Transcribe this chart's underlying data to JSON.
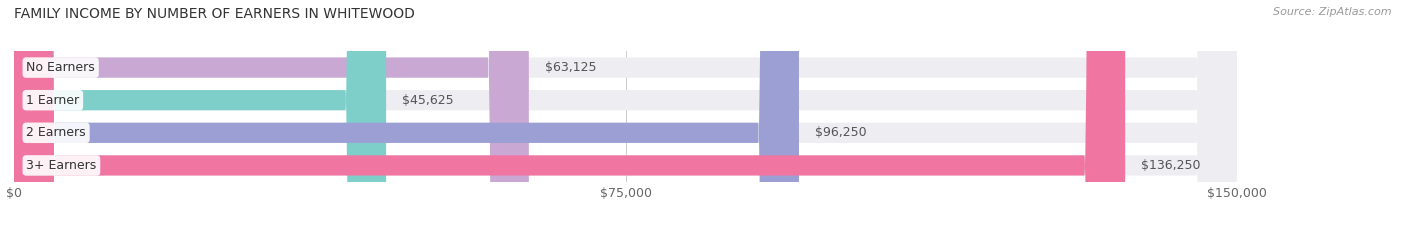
{
  "title": "FAMILY INCOME BY NUMBER OF EARNERS IN WHITEWOOD",
  "source": "Source: ZipAtlas.com",
  "categories": [
    "No Earners",
    "1 Earner",
    "2 Earners",
    "3+ Earners"
  ],
  "values": [
    63125,
    45625,
    96250,
    136250
  ],
  "labels": [
    "$63,125",
    "$45,625",
    "$96,250",
    "$136,250"
  ],
  "bar_colors": [
    "#c9a8d4",
    "#7ecfca",
    "#9b9fd4",
    "#f075a0"
  ],
  "bar_bg_color": "#ededf2",
  "xlim": [
    0,
    150000
  ],
  "xticks": [
    0,
    75000,
    150000
  ],
  "xticklabels": [
    "$0",
    "$75,000",
    "$150,000"
  ],
  "title_fontsize": 10,
  "source_fontsize": 8,
  "label_fontsize": 9,
  "cat_fontsize": 9,
  "background_color": "#ffffff",
  "bar_height": 0.62
}
